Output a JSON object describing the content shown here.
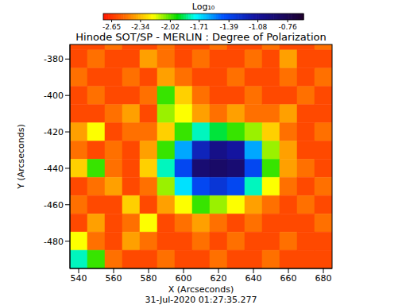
{
  "chart_data": {
    "type": "heatmap",
    "title": "Hinode SOT/SP - MERLIN : Degree of Polarization",
    "subtitle": "31-Jul-2020 01:27:35.277",
    "x_label": "X (Arcseconds)",
    "y_label": "Y (Arcseconds)",
    "xlim": [
      535,
      685
    ],
    "xticks": [
      540,
      560,
      580,
      600,
      620,
      640,
      660,
      680
    ],
    "ylim": [
      -495,
      -372
    ],
    "yticks": [
      -480,
      -460,
      -440,
      -420,
      -400,
      -380
    ],
    "x": [
      540,
      550,
      560,
      570,
      580,
      590,
      600,
      610,
      620,
      630,
      640,
      650,
      660,
      670,
      680
    ],
    "y": [
      -370,
      -380,
      -390,
      -400,
      -410,
      -420,
      -430,
      -440,
      -450,
      -460,
      -470,
      -480,
      -490
    ],
    "cell_size": [
      10,
      10
    ],
    "values": [
      [
        -2.6,
        -2.6,
        -2.5,
        -2.6,
        -2.6,
        -2.5,
        -2.6,
        -2.6,
        -2.5,
        -2.6,
        -2.6,
        -2.5,
        -2.6,
        -2.6,
        -2.5
      ],
      [
        -2.6,
        -2.5,
        -2.6,
        -2.6,
        -2.4,
        -2.5,
        -2.6,
        -2.5,
        -2.6,
        -2.6,
        -2.5,
        -2.6,
        -2.4,
        -2.6,
        -2.6
      ],
      [
        -2.5,
        -2.6,
        -2.6,
        -2.5,
        -2.6,
        -2.4,
        -2.5,
        -2.6,
        -2.6,
        -2.5,
        -2.6,
        -2.6,
        -2.5,
        -2.6,
        -2.5
      ],
      [
        -2.6,
        -2.5,
        -2.6,
        -2.6,
        -2.5,
        -2.0,
        -2.3,
        -2.5,
        -2.6,
        -2.6,
        -2.5,
        -2.6,
        -2.6,
        -2.5,
        -2.6
      ],
      [
        -2.6,
        -2.6,
        -2.5,
        -2.4,
        -2.6,
        -2.1,
        -2.2,
        -2.4,
        -2.5,
        -2.4,
        -2.5,
        -2.5,
        -2.4,
        -2.6,
        -2.6
      ],
      [
        -2.4,
        -2.2,
        -2.6,
        -2.5,
        -2.5,
        -2.3,
        -2.0,
        -1.8,
        -1.9,
        -2.0,
        -2.1,
        -2.3,
        -2.5,
        -2.6,
        -2.5
      ],
      [
        -2.5,
        -2.6,
        -2.5,
        -2.6,
        -2.4,
        -2.0,
        -1.6,
        -1.2,
        -1.0,
        -1.1,
        -1.6,
        -2.1,
        -2.4,
        -2.6,
        -2.6
      ],
      [
        -2.3,
        -2.0,
        -2.5,
        -2.6,
        -2.3,
        -1.8,
        -1.4,
        -0.9,
        -0.85,
        -0.9,
        -1.4,
        -2.0,
        -2.4,
        -2.5,
        -2.6
      ],
      [
        -2.6,
        -2.5,
        -2.4,
        -2.6,
        -2.5,
        -2.1,
        -1.7,
        -1.4,
        -1.3,
        -1.4,
        -1.8,
        -2.2,
        -2.5,
        -2.6,
        -2.5
      ],
      [
        -2.5,
        -2.6,
        -2.6,
        -2.3,
        -2.6,
        -2.4,
        -2.2,
        -2.0,
        -2.1,
        -2.2,
        -2.4,
        -2.5,
        -2.6,
        -2.5,
        -2.6
      ],
      [
        -2.6,
        -2.4,
        -2.6,
        -2.5,
        -2.2,
        -2.6,
        -2.5,
        -2.4,
        -2.5,
        -2.6,
        -2.5,
        -2.6,
        -2.6,
        -2.6,
        -2.5
      ],
      [
        -2.2,
        -2.5,
        -2.6,
        -2.4,
        -2.5,
        -2.6,
        -2.6,
        -2.5,
        -2.6,
        -2.5,
        -2.6,
        -2.6,
        -2.5,
        -2.6,
        -2.6
      ],
      [
        -1.8,
        -2.0,
        -2.5,
        -2.6,
        -2.6,
        -2.5,
        -2.6,
        -2.6,
        -2.5,
        -2.6,
        -2.6,
        -2.5,
        -2.6,
        -2.6,
        -2.6
      ]
    ],
    "colorbar": {
      "label": "Log₁₀",
      "range": [
        -2.74,
        -0.59
      ],
      "ticks": [
        -2.65,
        -2.34,
        -2.02,
        -1.71,
        -1.39,
        -1.08,
        -0.76
      ]
    }
  }
}
